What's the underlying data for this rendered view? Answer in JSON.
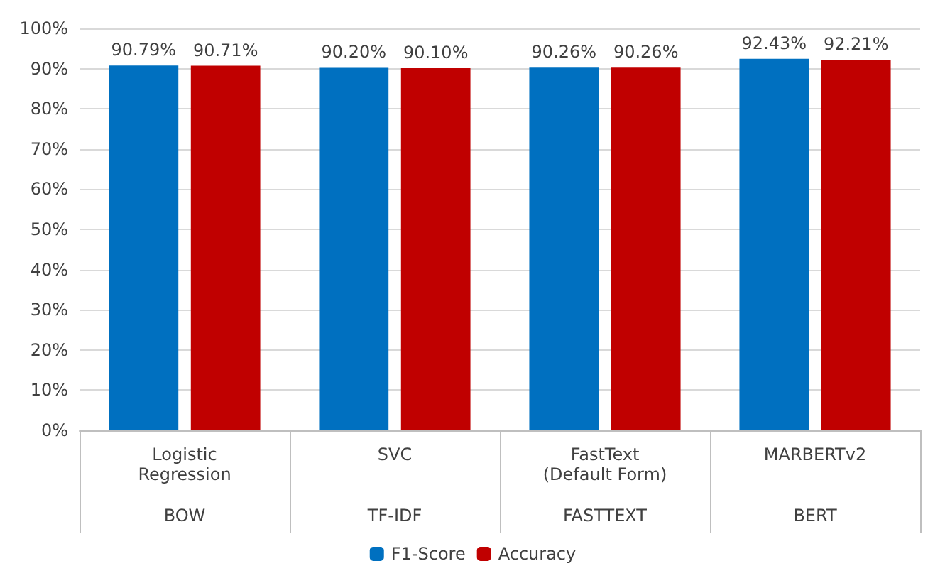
{
  "chart_data": {
    "type": "bar",
    "categories": [
      "Logistic\nRegression",
      "SVC",
      "FastText\n(Default Form)",
      "MARBERTv2"
    ],
    "annotations": [
      "BOW",
      "TF-IDF",
      "FASTTEXT",
      "BERT"
    ],
    "series": [
      {
        "name": "F1-Score",
        "color": "#0070c0",
        "values": [
          90.79,
          90.2,
          90.26,
          92.43
        ],
        "value_labels": [
          "90.79%",
          "90.20%",
          "90.26%",
          "92.43%"
        ]
      },
      {
        "name": "Accuracy",
        "color": "#c00000",
        "values": [
          90.71,
          90.1,
          90.26,
          92.21
        ],
        "value_labels": [
          "90.71%",
          "90.10%",
          "90.26%",
          "92.21%"
        ]
      }
    ],
    "ylim": [
      0,
      100
    ],
    "yticks": [
      {
        "value": 0,
        "label": "0%"
      },
      {
        "value": 10,
        "label": "10%"
      },
      {
        "value": 20,
        "label": "20%"
      },
      {
        "value": 30,
        "label": "30%"
      },
      {
        "value": 40,
        "label": "40%"
      },
      {
        "value": 50,
        "label": "50%"
      },
      {
        "value": 60,
        "label": "60%"
      },
      {
        "value": 70,
        "label": "70%"
      },
      {
        "value": 80,
        "label": "80%"
      },
      {
        "value": 90,
        "label": "90%"
      },
      {
        "value": 100,
        "label": "100%"
      }
    ],
    "grid": "y",
    "legend": "bottom"
  }
}
